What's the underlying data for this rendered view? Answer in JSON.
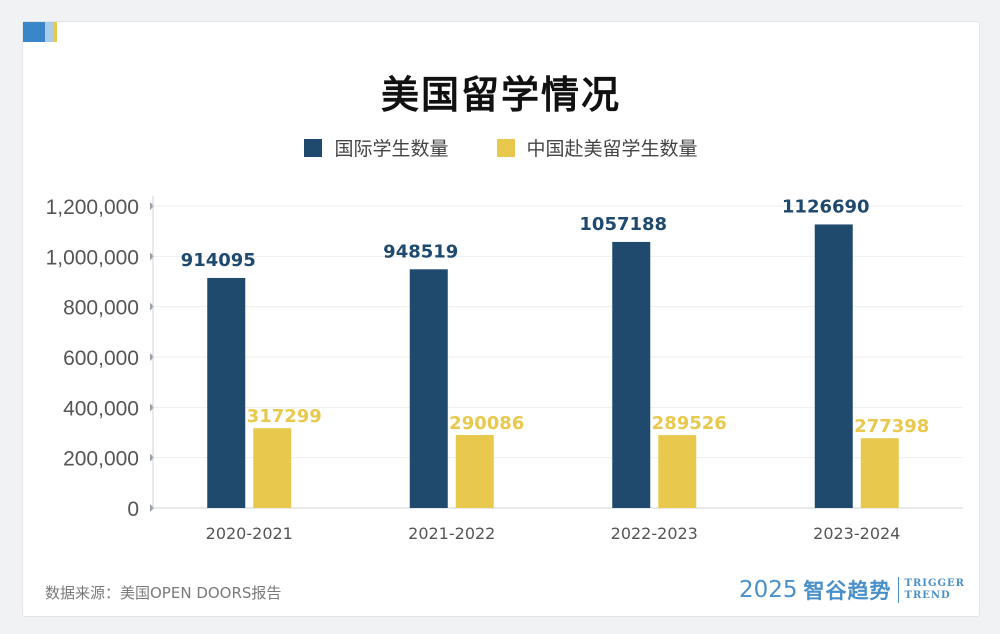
{
  "title": "美国留学情况",
  "legend": [
    {
      "label": "国际学生数量",
      "color": "#1f4a6e"
    },
    {
      "label": "中国赴美留学生数量",
      "color": "#e9c84e"
    }
  ],
  "source_text": "数据来源：美国OPEN DOORS报告",
  "brand": {
    "year": "2025",
    "name": "智谷趋势",
    "en_line1": "TRIGGER",
    "en_line2": "TREND"
  },
  "colors": {
    "navy": "#1f4a6e",
    "gold": "#e9c84e",
    "accent_blue": "#3a86c8"
  },
  "chart_data": {
    "type": "bar",
    "title": "美国留学情况",
    "categories": [
      "2020-2021",
      "2021-2022",
      "2022-2023",
      "2023-2024"
    ],
    "series": [
      {
        "name": "国际学生数量",
        "values": [
          914095,
          948519,
          1057188,
          1126690
        ],
        "color": "#1f4a6e"
      },
      {
        "name": "中国赴美留学生数量",
        "values": [
          317299,
          290086,
          289526,
          277398
        ],
        "color": "#e9c84e"
      }
    ],
    "ylim": [
      0,
      1200000
    ],
    "yticks": [
      0,
      200000,
      400000,
      600000,
      800000,
      1000000,
      1200000
    ],
    "ytick_labels": [
      "0",
      "200,000",
      "400,000",
      "600,000",
      "800,000",
      "1,000,000",
      "1,200,000"
    ],
    "xlabel": "",
    "ylabel": "",
    "grid": true,
    "legend_position": "top-center"
  }
}
